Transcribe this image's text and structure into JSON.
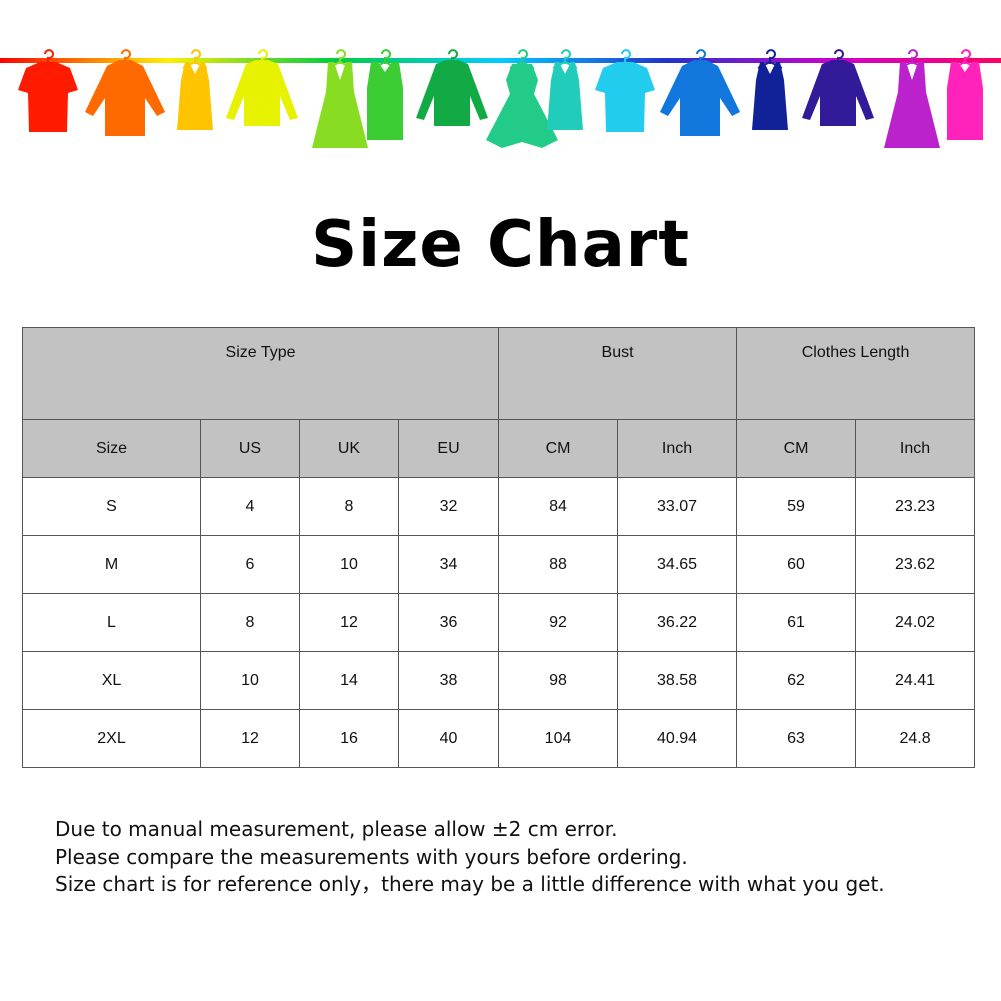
{
  "banner": {
    "rod_gradient": [
      "#ff0000",
      "#ffee00",
      "#00cc44",
      "#00ccff",
      "#2233cc",
      "#cc00cc",
      "#ff0066"
    ],
    "garments": [
      {
        "type": "tshirt",
        "color": "#ff1a00"
      },
      {
        "type": "shirt",
        "color": "#ff6a00"
      },
      {
        "type": "tank",
        "color": "#ffc400"
      },
      {
        "type": "sweater",
        "color": "#e6f200"
      },
      {
        "type": "dress",
        "color": "#88dd22"
      },
      {
        "type": "belted-dress",
        "color": "#3ccc33"
      },
      {
        "type": "sweater",
        "color": "#11aa44"
      },
      {
        "type": "gown",
        "color": "#22cc88"
      },
      {
        "type": "tank",
        "color": "#22ccbb"
      },
      {
        "type": "tshirt",
        "color": "#22ccee"
      },
      {
        "type": "shirt",
        "color": "#1177dd"
      },
      {
        "type": "tank",
        "color": "#112299"
      },
      {
        "type": "sweater",
        "color": "#331a99"
      },
      {
        "type": "dress",
        "color": "#bb22cc"
      },
      {
        "type": "belted-dress",
        "color": "#ff22bb"
      }
    ]
  },
  "title": "Size Chart",
  "table": {
    "groups": [
      "Size Type",
      "Bust",
      "Clothes Length"
    ],
    "columns": [
      "Size",
      "US",
      "UK",
      "EU",
      "CM",
      "Inch",
      "CM",
      "Inch"
    ],
    "rows": [
      [
        "S",
        "4",
        "8",
        "32",
        "84",
        "33.07",
        "59",
        "23.23"
      ],
      [
        "M",
        "6",
        "10",
        "34",
        "88",
        "34.65",
        "60",
        "23.62"
      ],
      [
        "L",
        "8",
        "12",
        "36",
        "92",
        "36.22",
        "61",
        "24.02"
      ],
      [
        "XL",
        "10",
        "14",
        "38",
        "98",
        "38.58",
        "62",
        "24.41"
      ],
      [
        "2XL",
        "12",
        "16",
        "40",
        "104",
        "40.94",
        "63",
        "24.8"
      ]
    ]
  },
  "notes": [
    "Due to manual measurement, please allow ±2 cm error.",
    "Please compare the measurements with yours before ordering.",
    "Size chart is for reference only，there may be a little difference with what you get."
  ]
}
